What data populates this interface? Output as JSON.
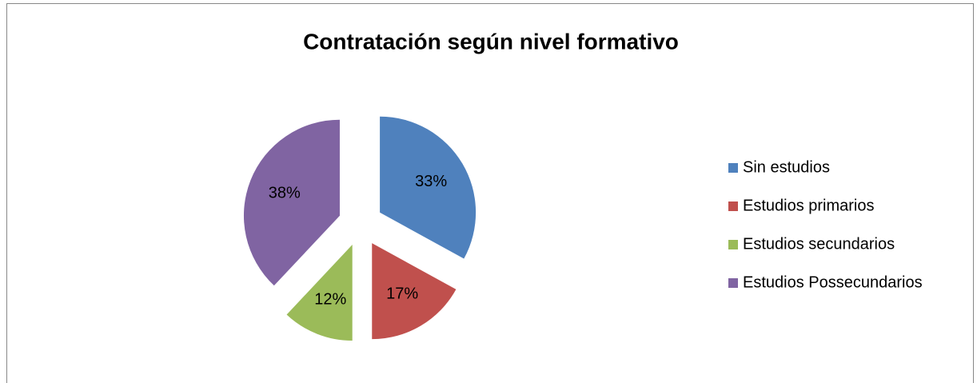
{
  "chart_data": {
    "type": "pie",
    "title": "Contratación según nivel formativo",
    "categories": [
      "Sin estudios",
      "Estudios primarios",
      "Estudios secundarios",
      "Estudios Possecundarios"
    ],
    "values": [
      33,
      17,
      12,
      38
    ],
    "value_labels": [
      "33%",
      "17%",
      "12%",
      "38%"
    ],
    "colors": [
      "#4f81bd",
      "#c0504d",
      "#9bbb59",
      "#8064a2"
    ],
    "legend": "right"
  }
}
